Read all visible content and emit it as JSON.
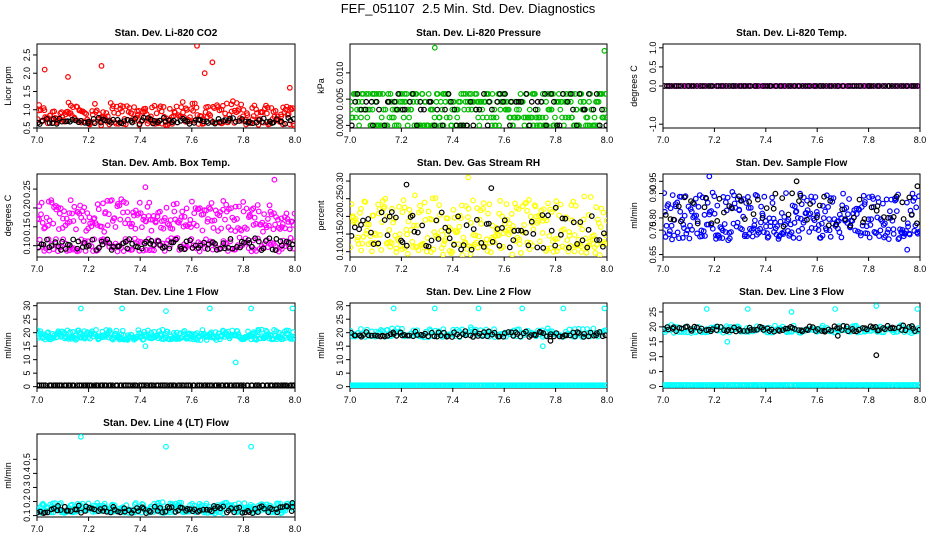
{
  "figure": {
    "title": "FEF_051107  2.5 Min. Std. Dev. Diagnostics"
  },
  "chart_data": [
    {
      "type": "scatter",
      "title": "Stan. Dev. Li-820 CO2",
      "xlabel": "",
      "ylabel": "Licor ppm",
      "xlim": [
        7.0,
        8.0
      ],
      "ylim": [
        0.5,
        2.8
      ],
      "xticks": [
        "7.0",
        "7.2",
        "7.4",
        "7.6",
        "7.8",
        "8.0"
      ],
      "yticks": [
        "0.5",
        "1.0",
        "1.5",
        "2.0",
        "2.5"
      ],
      "series": [
        {
          "color": "#ff0000",
          "band": [
            0.6,
            1.2
          ],
          "n": 260,
          "outliers": [
            [
              7.03,
              2.1
            ],
            [
              7.25,
              2.2
            ],
            [
              7.62,
              2.75
            ],
            [
              7.65,
              2.0
            ],
            [
              7.68,
              2.3
            ],
            [
              7.98,
              1.6
            ],
            [
              7.12,
              1.9
            ]
          ]
        },
        {
          "color": "#000000",
          "band": [
            0.62,
            0.78
          ],
          "n": 95,
          "outliers": []
        }
      ]
    },
    {
      "type": "scatter",
      "title": "Stan. Dev. Li-820 Pressure",
      "xlabel": "",
      "ylabel": "kPa",
      "xlim": [
        7.0,
        8.0
      ],
      "ylim": [
        -0.0005,
        0.0155
      ],
      "xticks": [
        "7.0",
        "7.2",
        "7.4",
        "7.6",
        "7.8",
        "8.0"
      ],
      "yticks": [
        "0.000",
        "0.005",
        "0.010"
      ],
      "series": [
        {
          "color": "#00bb00",
          "levels": [
            0.0,
            0.0015,
            0.003,
            0.0045,
            0.006
          ],
          "n": 320,
          "outliers": [
            [
              7.33,
              0.0148
            ],
            [
              7.99,
              0.0142
            ]
          ]
        },
        {
          "color": "#000000",
          "levels": [
            0.0,
            0.003,
            0.0045,
            0.006
          ],
          "n": 80,
          "outliers": []
        }
      ]
    },
    {
      "type": "scatter",
      "title": "Stan. Dev. Li-820 Temp.",
      "xlabel": "",
      "ylabel": "degrees C",
      "xlim": [
        7.0,
        8.0
      ],
      "ylim": [
        -1.1,
        1.1
      ],
      "xticks": [
        "7.0",
        "7.2",
        "7.4",
        "7.6",
        "7.8",
        "8.0"
      ],
      "yticks": [
        "-1.0",
        "0.0",
        "0.5",
        "1.0"
      ],
      "series": [
        {
          "color": "#ff00ff",
          "band": [
            0.0,
            0.0
          ],
          "n": 120,
          "outliers": []
        },
        {
          "color": "#000000",
          "band": [
            0.0,
            0.0
          ],
          "n": 100,
          "outliers": []
        }
      ]
    },
    {
      "type": "scatter",
      "title": "Stan. Dev. Amb. Box Temp.",
      "xlabel": "",
      "ylabel": "degrees C",
      "xlim": [
        7.0,
        8.0
      ],
      "ylim": [
        0.07,
        0.29
      ],
      "xticks": [
        "7.0",
        "7.2",
        "7.4",
        "7.6",
        "7.8",
        "8.0"
      ],
      "yticks": [
        "0.10",
        "0.15",
        "0.20",
        "0.25"
      ],
      "series": [
        {
          "color": "#ff00ff",
          "band": [
            0.14,
            0.22
          ],
          "n": 230,
          "outliers": [
            [
              7.92,
              0.275
            ],
            [
              7.42,
              0.255
            ]
          ]
        },
        {
          "color": "#ff00ff",
          "band": [
            0.085,
            0.12
          ],
          "n": 150,
          "outliers": []
        },
        {
          "color": "#000000",
          "band": [
            0.09,
            0.12
          ],
          "n": 95,
          "outliers": []
        }
      ]
    },
    {
      "type": "scatter",
      "title": "Stan. Dev. Gas Stream RH",
      "xlabel": "",
      "ylabel": "percent",
      "xlim": [
        7.0,
        8.0
      ],
      "ylim": [
        0.085,
        0.32
      ],
      "xticks": [
        "7.0",
        "7.2",
        "7.4",
        "7.6",
        "7.8",
        "8.0"
      ],
      "yticks": [
        "0.10",
        "0.15",
        "0.20",
        "0.25",
        "0.30"
      ],
      "series": [
        {
          "color": "#ffff00",
          "band": [
            0.1,
            0.25
          ],
          "n": 300,
          "outliers": [
            [
              7.46,
              0.31
            ]
          ]
        },
        {
          "color": "#000000",
          "band": [
            0.11,
            0.22
          ],
          "n": 80,
          "outliers": [
            [
              7.22,
              0.29
            ],
            [
              7.55,
              0.28
            ]
          ]
        }
      ]
    },
    {
      "type": "scatter",
      "title": "Stan. Dev. Sample Flow",
      "xlabel": "",
      "ylabel": "ml/min",
      "xlim": [
        7.0,
        8.0
      ],
      "ylim": [
        0.64,
        0.98
      ],
      "xticks": [
        "7.0",
        "7.2",
        "7.4",
        "7.6",
        "7.8",
        "8.0"
      ],
      "yticks": [
        "0.65",
        "0.75",
        "0.80",
        "0.90",
        "0.95"
      ],
      "series": [
        {
          "color": "#0000ff",
          "band": [
            0.72,
            0.9
          ],
          "n": 320,
          "outliers": [
            [
              7.18,
              0.97
            ],
            [
              7.95,
              0.67
            ]
          ]
        },
        {
          "color": "#000000",
          "band": [
            0.76,
            0.9
          ],
          "n": 60,
          "outliers": [
            [
              7.52,
              0.95
            ],
            [
              7.99,
              0.93
            ]
          ]
        }
      ]
    },
    {
      "type": "scatter",
      "title": "Stan. Dev. Line 1 Flow",
      "xlabel": "",
      "ylabel": "ml/min",
      "xlim": [
        7.0,
        8.0
      ],
      "ylim": [
        -0.5,
        31
      ],
      "xticks": [
        "7.0",
        "7.2",
        "7.4",
        "7.6",
        "7.8",
        "8.0"
      ],
      "yticks": [
        "0",
        "5",
        "10",
        "15",
        "20",
        "25",
        "30"
      ],
      "series": [
        {
          "color": "#00ffff",
          "band": [
            17.5,
            21
          ],
          "n": 320,
          "outliers": [
            [
              7.17,
              29
            ],
            [
              7.33,
              29
            ],
            [
              7.5,
              28
            ],
            [
              7.67,
              29
            ],
            [
              7.83,
              29
            ],
            [
              7.99,
              29
            ],
            [
              7.77,
              9
            ],
            [
              7.42,
              15
            ]
          ]
        },
        {
          "color": "#000000",
          "band": [
            0.5,
            0.5
          ],
          "n": 120,
          "outliers": []
        }
      ]
    },
    {
      "type": "scatter",
      "title": "Stan. Dev. Line 2 Flow",
      "xlabel": "",
      "ylabel": "ml/min",
      "xlim": [
        7.0,
        8.0
      ],
      "ylim": [
        -0.5,
        31
      ],
      "xticks": [
        "7.0",
        "7.2",
        "7.4",
        "7.6",
        "7.8",
        "8.0"
      ],
      "yticks": [
        "0",
        "5",
        "10",
        "15",
        "20",
        "25",
        "30"
      ],
      "series": [
        {
          "color": "#00ffff",
          "band": [
            0.5,
            0.5
          ],
          "n": 200,
          "outliers": []
        },
        {
          "color": "#00ffff",
          "band": [
            18.5,
            21.5
          ],
          "n": 160,
          "outliers": [
            [
              7.17,
              29
            ],
            [
              7.33,
              29
            ],
            [
              7.5,
              29
            ],
            [
              7.67,
              29
            ],
            [
              7.83,
              29
            ],
            [
              7.99,
              29
            ],
            [
              7.47,
              22
            ],
            [
              7.75,
              15
            ]
          ]
        },
        {
          "color": "#000000",
          "band": [
            18.5,
            20.5
          ],
          "n": 100,
          "outliers": [
            [
              7.78,
              17
            ]
          ]
        }
      ]
    },
    {
      "type": "scatter",
      "title": "Stan. Dev. Line 3 Flow",
      "xlabel": "",
      "ylabel": "ml/min",
      "xlim": [
        7.0,
        8.0
      ],
      "ylim": [
        -0.5,
        28
      ],
      "xticks": [
        "7.0",
        "7.2",
        "7.4",
        "7.6",
        "7.8",
        "8.0"
      ],
      "yticks": [
        "0",
        "5",
        "10",
        "15",
        "20",
        "25"
      ],
      "series": [
        {
          "color": "#00ffff",
          "band": [
            0.5,
            0.5
          ],
          "n": 200,
          "outliers": []
        },
        {
          "color": "#00ffff",
          "band": [
            18,
            20.5
          ],
          "n": 160,
          "outliers": [
            [
              7.17,
              26
            ],
            [
              7.33,
              26
            ],
            [
              7.5,
              25
            ],
            [
              7.67,
              26
            ],
            [
              7.83,
              27
            ],
            [
              7.99,
              26
            ],
            [
              7.25,
              15
            ]
          ]
        },
        {
          "color": "#000000",
          "band": [
            18.5,
            20.5
          ],
          "n": 100,
          "outliers": [
            [
              7.83,
              10.5
            ],
            [
              7.68,
              17
            ]
          ]
        }
      ]
    },
    {
      "type": "scatter",
      "title": "Stan. Dev. Line 4 (LT) Flow",
      "xlabel": "",
      "ylabel": "ml/min",
      "xlim": [
        7.0,
        8.0
      ],
      "ylim": [
        0.09,
        0.68
      ],
      "xticks": [
        "7.0",
        "7.2",
        "7.4",
        "7.6",
        "7.8",
        "8.0"
      ],
      "yticks": [
        "0.1",
        "0.2",
        "0.3",
        "0.4",
        "0.5"
      ],
      "series": [
        {
          "color": "#00ffff",
          "band": [
            0.12,
            0.19
          ],
          "n": 320,
          "outliers": [
            [
              7.17,
              0.66
            ],
            [
              7.5,
              0.59
            ],
            [
              7.83,
              0.59
            ]
          ]
        },
        {
          "color": "#000000",
          "band": [
            0.12,
            0.17
          ],
          "n": 100,
          "outliers": [
            [
              7.99,
              0.19
            ]
          ]
        }
      ]
    }
  ]
}
